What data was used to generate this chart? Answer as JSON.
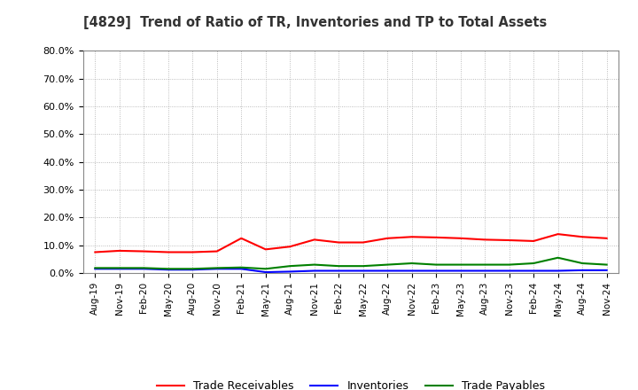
{
  "title": "[4829]  Trend of Ratio of TR, Inventories and TP to Total Assets",
  "x_labels": [
    "Aug-19",
    "Nov-19",
    "Feb-20",
    "May-20",
    "Aug-20",
    "Nov-20",
    "Feb-21",
    "May-21",
    "Aug-21",
    "Nov-21",
    "Feb-22",
    "May-22",
    "Aug-22",
    "Nov-22",
    "Feb-23",
    "May-23",
    "Aug-23",
    "Nov-23",
    "Feb-24",
    "May-24",
    "Aug-24",
    "Nov-24"
  ],
  "trade_receivables": [
    7.5,
    8.0,
    7.8,
    7.5,
    7.5,
    7.8,
    12.5,
    8.5,
    9.5,
    12.0,
    11.0,
    11.0,
    12.5,
    13.0,
    12.8,
    12.5,
    12.0,
    11.8,
    11.5,
    14.0,
    13.0,
    12.5
  ],
  "inventories": [
    1.5,
    1.5,
    1.5,
    1.2,
    1.2,
    1.5,
    1.5,
    0.3,
    0.5,
    0.8,
    0.8,
    0.8,
    0.8,
    0.8,
    0.8,
    0.8,
    0.8,
    0.8,
    0.8,
    0.8,
    1.0,
    1.0
  ],
  "trade_payables": [
    1.8,
    1.8,
    1.8,
    1.5,
    1.5,
    1.8,
    2.0,
    1.5,
    2.5,
    3.0,
    2.5,
    2.5,
    3.0,
    3.5,
    3.0,
    3.0,
    3.0,
    3.0,
    3.5,
    5.5,
    3.5,
    3.0
  ],
  "ylim": [
    0,
    80
  ],
  "yticks": [
    0,
    10,
    20,
    30,
    40,
    50,
    60,
    70,
    80
  ],
  "tr_color": "#ff0000",
  "inv_color": "#0000ff",
  "tp_color": "#008000",
  "background_color": "#ffffff",
  "grid_color": "#aaaaaa",
  "legend_labels": [
    "Trade Receivables",
    "Inventories",
    "Trade Payables"
  ]
}
